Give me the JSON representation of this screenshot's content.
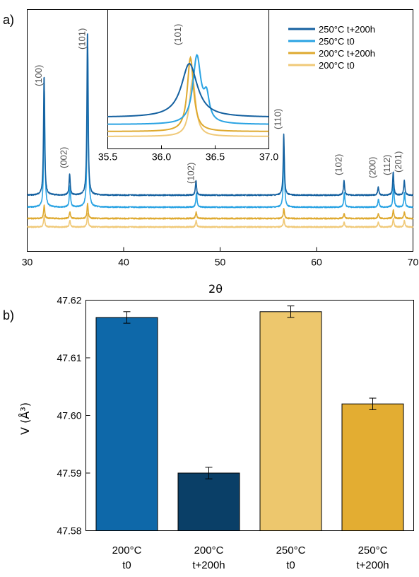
{
  "chart_data": [
    {
      "type": "line",
      "panel_label": "a)",
      "xlabel": "2θ",
      "xlim": [
        30,
        70
      ],
      "xticks": [
        30,
        40,
        50,
        60,
        70
      ],
      "ylabel": "",
      "grid": false,
      "legend_position": "top-right",
      "series": [
        {
          "name": "250°C t+200h",
          "color": "#1561a0",
          "peaks": [
            31.75,
            34.4,
            36.25,
            47.5,
            56.6,
            62.85,
            66.4,
            67.95,
            69.1
          ],
          "heights": [
            0.73,
            0.13,
            1.0,
            0.09,
            0.37,
            0.09,
            0.05,
            0.14,
            0.09
          ]
        },
        {
          "name": "250°C t0",
          "color": "#2aa3e3",
          "peaks": [
            31.78,
            34.43,
            36.28,
            47.55,
            56.62,
            62.88,
            66.42,
            67.98,
            69.12
          ],
          "heights": [
            0.71,
            0.13,
            0.97,
            0.09,
            0.37,
            0.09,
            0.05,
            0.14,
            0.09
          ]
        },
        {
          "name": "200°C t+200h",
          "color": "#dea92f",
          "peaks": [
            31.76,
            34.42,
            36.26,
            47.52,
            56.61,
            62.86,
            66.41,
            67.96,
            69.11
          ],
          "heights": [
            0.08,
            0.04,
            0.09,
            0.04,
            0.06,
            0.03,
            0.03,
            0.05,
            0.04
          ]
        },
        {
          "name": "200°C t0",
          "color": "#f0c978",
          "peaks": [
            31.76,
            34.42,
            36.26,
            47.52,
            56.61,
            62.86,
            66.41,
            67.96,
            69.11
          ],
          "heights": [
            0.07,
            0.04,
            0.08,
            0.04,
            0.05,
            0.03,
            0.03,
            0.05,
            0.04
          ]
        }
      ],
      "reflections": [
        {
          "label": "(100)",
          "x": 31.8
        },
        {
          "label": "(002)",
          "x": 34.4
        },
        {
          "label": "(101)",
          "x": 36.3
        },
        {
          "label": "(102)",
          "x": 47.6
        },
        {
          "label": "(110)",
          "x": 56.6
        },
        {
          "label": "(102)",
          "x": 62.9
        },
        {
          "label": "(200)",
          "x": 66.4
        },
        {
          "label": "(112)",
          "x": 67.9
        },
        {
          "label": "(201)",
          "x": 69.1
        }
      ],
      "inset": {
        "xlim": [
          35.5,
          37.0
        ],
        "xticks": [
          35.5,
          36.0,
          36.5,
          37.0
        ],
        "label": "(101)",
        "label_x": 36.25
      }
    },
    {
      "type": "bar",
      "panel_label": "b)",
      "ylabel": "V (Å³)",
      "ylim": [
        47.58,
        47.62
      ],
      "yticks": [
        47.58,
        47.59,
        47.6,
        47.61,
        47.62
      ],
      "categories": [
        [
          "200°C",
          "t0"
        ],
        [
          "200°C",
          "t+200h"
        ],
        [
          "250°C",
          "t0"
        ],
        [
          "250°C",
          "t+200h"
        ]
      ],
      "values": [
        47.617,
        47.59,
        47.618,
        47.602
      ],
      "errors": [
        0.001,
        0.001,
        0.001,
        0.001
      ],
      "colors": [
        "#0e68a9",
        "#0a3f67",
        "#edc76d",
        "#e3ad32"
      ]
    }
  ]
}
